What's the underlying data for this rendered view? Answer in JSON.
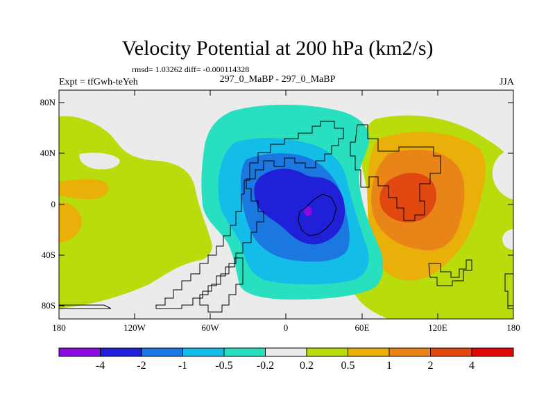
{
  "title": "Velocity Potential at 200 hPa (km2/s)",
  "stats": "rmsd= 1.03262 diff= -0.000114328",
  "left_label": "Expt = tfGwh-teYeh",
  "center_label": "297_0_MaBP - 297_0_MaBP",
  "right_label": "JJA",
  "lat_labels": [
    "80N",
    "40N",
    "0",
    "40S",
    "80S"
  ],
  "lon_labels": [
    "180",
    "120W",
    "60W",
    "0",
    "60E",
    "120E",
    "180"
  ],
  "colorbar": {
    "colors": [
      "#8a0ae0",
      "#2020d8",
      "#1a78e0",
      "#14bce8",
      "#28e0c0",
      "#ebebeb",
      "#b8dc0c",
      "#e8b008",
      "#e88418",
      "#e04810",
      "#e00808"
    ],
    "labels": [
      "-4",
      "-2",
      "-1",
      "-0.5",
      "-0.2",
      "0.2",
      "0.5",
      "1",
      "2",
      "4"
    ]
  },
  "map_colors": {
    "background": "#ebebeb",
    "c_neg4": "#8a0ae0",
    "c_neg2": "#2020d8",
    "c_neg1": "#1a78e0",
    "c_neg05": "#14bce8",
    "c_neg02": "#28e0c0",
    "c_02": "#b8dc0c",
    "c_05": "#e8b008",
    "c_1": "#e88418",
    "c_2": "#e04810"
  }
}
